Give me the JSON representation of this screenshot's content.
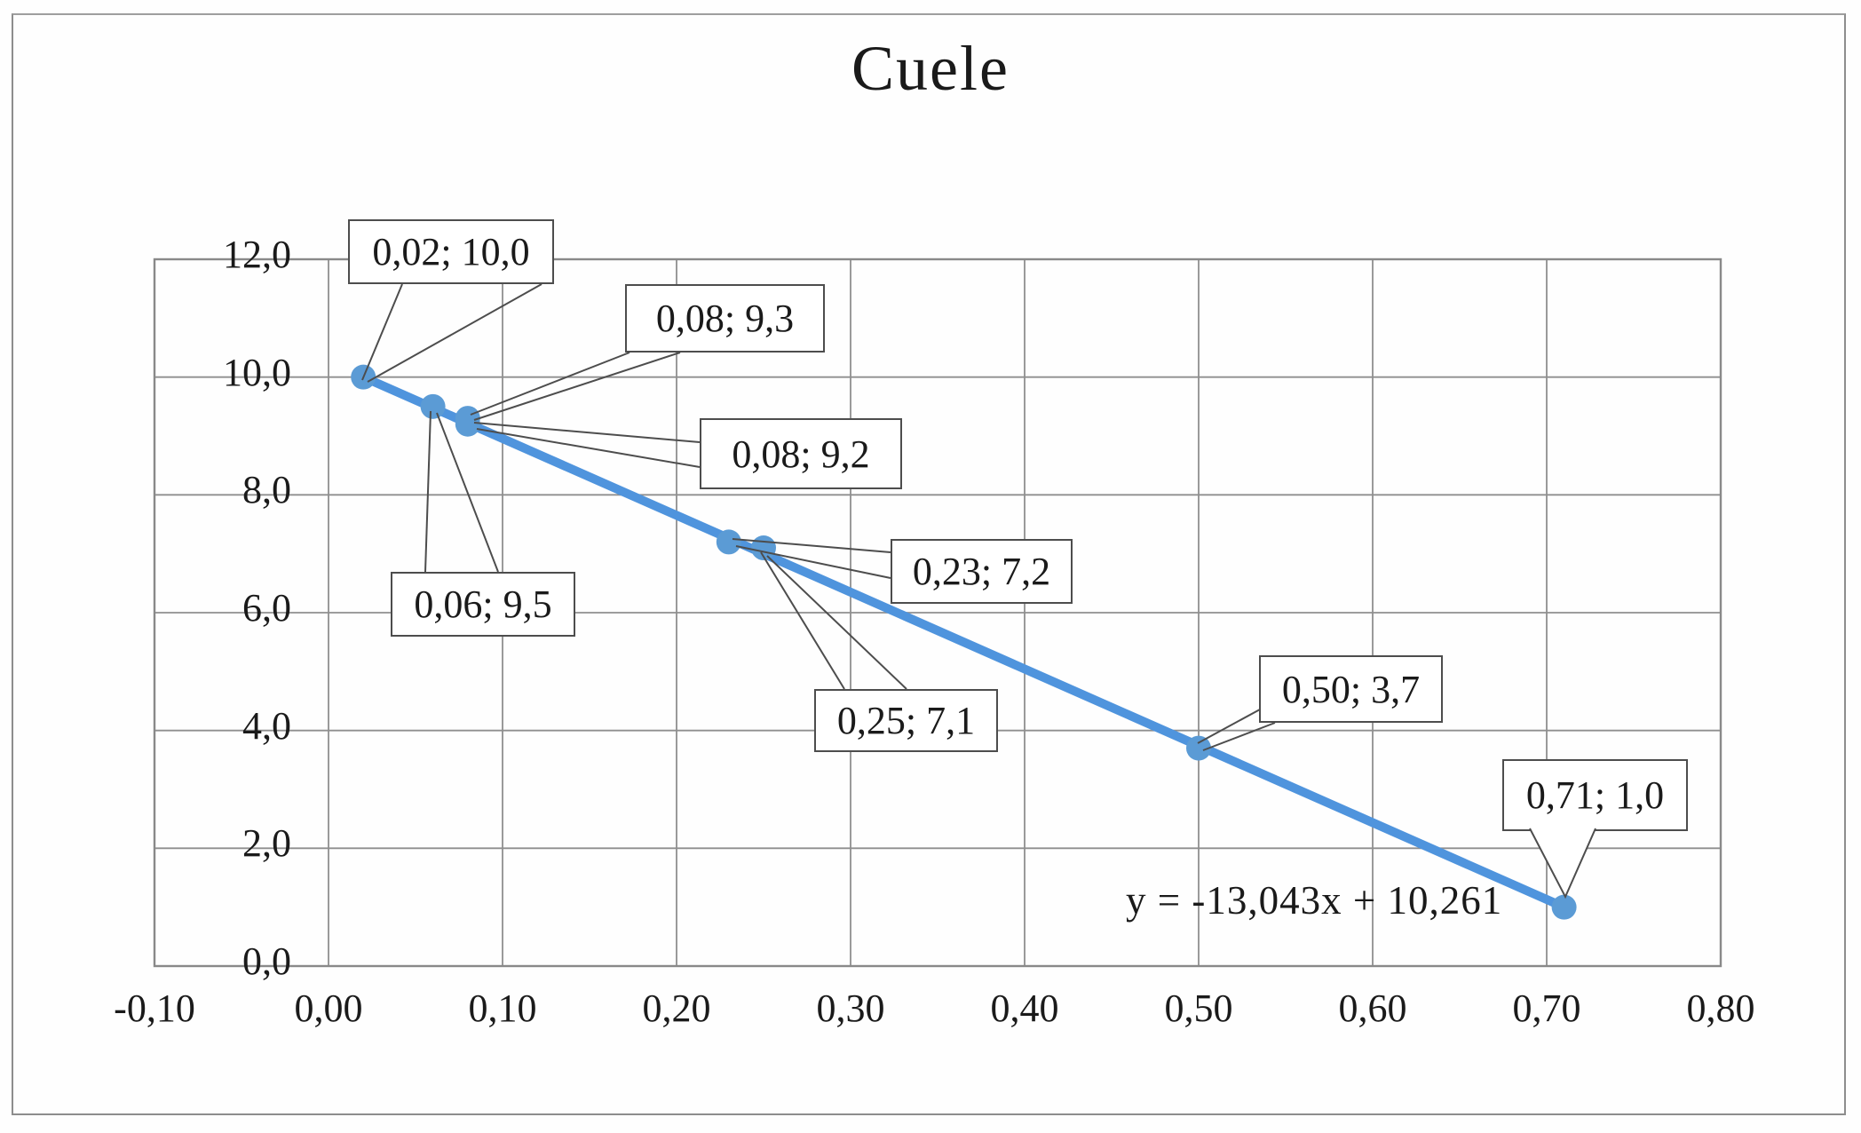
{
  "chart_data": {
    "type": "scatter",
    "title": "Cuele",
    "xlabel": "",
    "ylabel": "",
    "xlim": [
      -0.1,
      0.8
    ],
    "ylim": [
      0.0,
      12.0
    ],
    "grid": true,
    "legend": false,
    "colors": {
      "marker": "#5b9bd5",
      "line": "#4f94dd",
      "gridline": "#8f8f8f",
      "frame": "#898989",
      "callout_border": "#4d4d4d",
      "text": "#1a1a1a"
    },
    "x_ticks": [
      {
        "value": -0.1,
        "label": "-0,10"
      },
      {
        "value": 0.0,
        "label": "0,00"
      },
      {
        "value": 0.1,
        "label": "0,10"
      },
      {
        "value": 0.2,
        "label": "0,20"
      },
      {
        "value": 0.3,
        "label": "0,30"
      },
      {
        "value": 0.4,
        "label": "0,40"
      },
      {
        "value": 0.5,
        "label": "0,50"
      },
      {
        "value": 0.6,
        "label": "0,60"
      },
      {
        "value": 0.7,
        "label": "0,70"
      },
      {
        "value": 0.8,
        "label": "0,80"
      }
    ],
    "y_ticks": [
      {
        "value": 0,
        "label": "0,0"
      },
      {
        "value": 2,
        "label": "2,0"
      },
      {
        "value": 4,
        "label": "4,0"
      },
      {
        "value": 6,
        "label": "6,0"
      },
      {
        "value": 8,
        "label": "8,0"
      },
      {
        "value": 10,
        "label": "10,0"
      },
      {
        "value": 12,
        "label": "12,0"
      }
    ],
    "points": [
      {
        "x": 0.02,
        "y": 10.0,
        "label": "0,02; 10,0"
      },
      {
        "x": 0.06,
        "y": 9.5,
        "label": "0,06; 9,5"
      },
      {
        "x": 0.08,
        "y": 9.3,
        "label": "0,08; 9,3"
      },
      {
        "x": 0.08,
        "y": 9.2,
        "label": "0,08; 9,2"
      },
      {
        "x": 0.23,
        "y": 7.2,
        "label": "0,23; 7,2"
      },
      {
        "x": 0.25,
        "y": 7.1,
        "label": "0,25; 7,1"
      },
      {
        "x": 0.5,
        "y": 3.7,
        "label": "0,50; 3,7"
      },
      {
        "x": 0.71,
        "y": 1.0,
        "label": "0,71; 1,0"
      }
    ],
    "trendline": {
      "equation_label": "y = -13,043x + 10,261",
      "slope": -13.043,
      "intercept": 10.261
    }
  }
}
